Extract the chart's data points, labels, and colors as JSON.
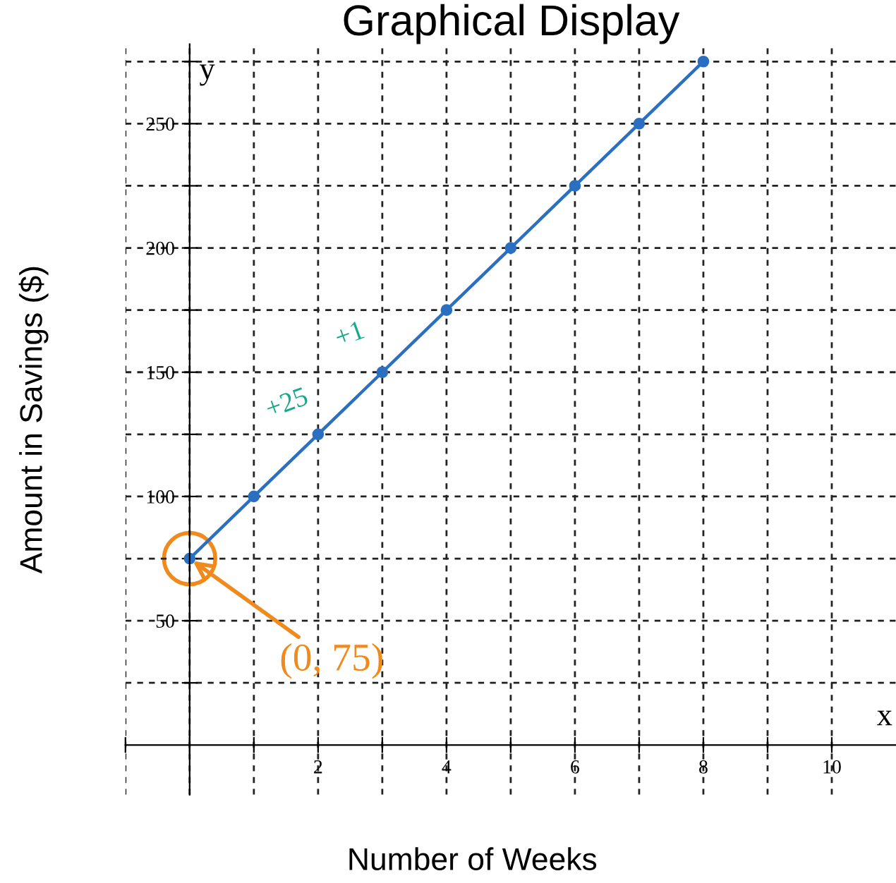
{
  "chart_data": {
    "type": "line",
    "title": "Graphical Display",
    "xlabel": "Number of Weeks",
    "ylabel": "Amount in Savings ($)",
    "x": [
      0,
      1,
      2,
      3,
      4,
      5,
      6,
      7,
      8
    ],
    "series": [
      {
        "color": "#2a6fc0",
        "values": [
          75,
          100,
          125,
          150,
          175,
          200,
          225,
          250,
          275
        ]
      }
    ],
    "xlim": [
      -1,
      11
    ],
    "ylim": [
      -20,
      282
    ],
    "xticks": [
      {
        "value": -1,
        "label": null
      },
      {
        "value": 0,
        "label": null
      },
      {
        "value": 1,
        "label": null
      },
      2,
      {
        "value": 3,
        "label": null
      },
      4,
      {
        "value": 5,
        "label": null
      },
      6,
      {
        "value": 7,
        "label": null
      },
      8,
      {
        "value": 9,
        "label": null
      },
      10
    ],
    "yticks": [
      {
        "value": 25,
        "label": null
      },
      50,
      {
        "value": 75,
        "label": null
      },
      100,
      {
        "value": 125,
        "label": null
      },
      150,
      {
        "value": 175,
        "label": null
      },
      200,
      {
        "value": 225,
        "label": null
      },
      250,
      {
        "value": 275,
        "label": null
      }
    ],
    "grid": true,
    "marker": "circle",
    "line_style": "solid",
    "annotations": [
      {
        "text": "(0, 75)",
        "x": 0,
        "y": 75
      },
      "+25",
      "+1",
      "x",
      "y"
    ]
  }
}
